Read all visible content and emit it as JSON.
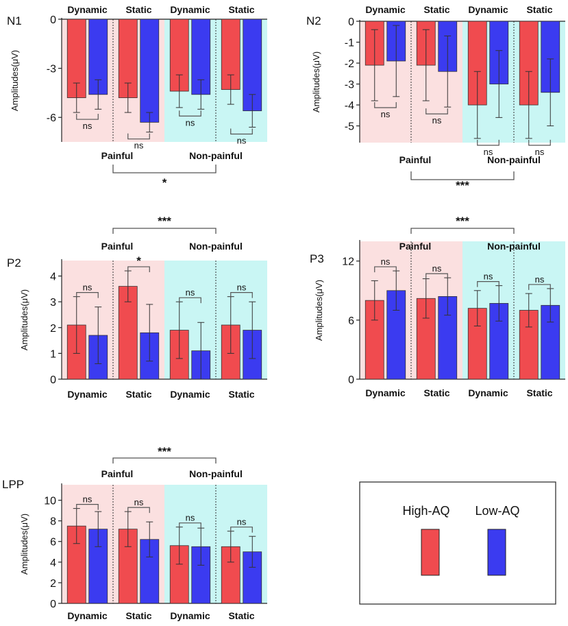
{
  "colors": {
    "high": "#f04b4f",
    "low": "#3b3bf0",
    "painful_bg": "#fbe0e0",
    "nonpainful_bg": "#c9f6f4"
  },
  "legend": {
    "high_label": "High-AQ",
    "low_label": "Low-AQ"
  },
  "chart_data": [
    {
      "panel": "N1",
      "type": "bar",
      "ylabel": "Amplitudes(μV)",
      "ylim": [
        -7.5,
        0
      ],
      "yticks": [
        "0",
        "-3",
        "-6"
      ],
      "groups": [
        "Painful",
        "Non-painful"
      ],
      "conditions": [
        "Dynamic",
        "Static",
        "Dynamic",
        "Static"
      ],
      "series": [
        {
          "name": "High-AQ",
          "values": [
            -4.8,
            -4.8,
            -4.4,
            -4.3
          ],
          "err": [
            0.9,
            0.9,
            1.0,
            0.9
          ]
        },
        {
          "name": "Low-AQ",
          "values": [
            -4.6,
            -6.3,
            -4.6,
            -5.6
          ],
          "err": [
            0.9,
            0.6,
            0.9,
            1.0
          ]
        }
      ],
      "pair_sig": [
        "ns",
        "ns",
        "ns",
        "ns"
      ],
      "group_sig": "*"
    },
    {
      "panel": "N2",
      "type": "bar",
      "ylabel": "Amplitudes(μV)",
      "ylim": [
        -5.8,
        0
      ],
      "yticks": [
        "0",
        "-1",
        "-2",
        "-3",
        "-4",
        "-5"
      ],
      "groups": [
        "Painful",
        "Non-painful"
      ],
      "conditions": [
        "Dynamic",
        "Static",
        "Dynamic",
        "Static"
      ],
      "series": [
        {
          "name": "High-AQ",
          "values": [
            -2.1,
            -2.1,
            -4.0,
            -4.0
          ],
          "err": [
            1.7,
            1.7,
            1.6,
            1.6
          ]
        },
        {
          "name": "Low-AQ",
          "values": [
            -1.9,
            -2.4,
            -3.0,
            -3.4
          ],
          "err": [
            1.7,
            1.7,
            1.6,
            1.6
          ]
        }
      ],
      "pair_sig": [
        "ns",
        "ns",
        "ns",
        "ns"
      ],
      "group_sig": "***"
    },
    {
      "panel": "P2",
      "type": "bar",
      "ylabel": "Amplitudes(μV)",
      "ylim": [
        0,
        4.6
      ],
      "yticks": [
        "0",
        "1",
        "2",
        "3",
        "4"
      ],
      "groups": [
        "Painful",
        "Non-painful"
      ],
      "conditions": [
        "Dynamic",
        "Static",
        "Dynamic",
        "Static"
      ],
      "series": [
        {
          "name": "High-AQ",
          "values": [
            2.1,
            3.6,
            1.9,
            2.1
          ],
          "err": [
            1.1,
            0.6,
            1.1,
            1.1
          ]
        },
        {
          "name": "Low-AQ",
          "values": [
            1.7,
            1.8,
            1.1,
            1.9
          ],
          "err": [
            1.1,
            1.1,
            1.1,
            1.1
          ]
        }
      ],
      "pair_sig": [
        "ns",
        "*",
        "ns",
        "ns"
      ],
      "group_sig": "***"
    },
    {
      "panel": "P3",
      "type": "bar",
      "ylabel": "Amplitudes(μV)",
      "ylim": [
        0,
        14
      ],
      "yticks": [
        "0",
        "6",
        "12"
      ],
      "groups": [
        "Painful",
        "Non-painful"
      ],
      "conditions": [
        "Dynamic",
        "Static",
        "Dynamic",
        "Static"
      ],
      "series": [
        {
          "name": "High-AQ",
          "values": [
            8.0,
            8.2,
            7.2,
            7.0
          ],
          "err": [
            2.0,
            2.0,
            1.8,
            1.7
          ]
        },
        {
          "name": "Low-AQ",
          "values": [
            9.0,
            8.4,
            7.7,
            7.5
          ],
          "err": [
            2.0,
            1.9,
            1.8,
            1.7
          ]
        }
      ],
      "pair_sig": [
        "ns",
        "ns",
        "ns",
        "ns"
      ],
      "group_sig": "***"
    },
    {
      "panel": "LPP",
      "type": "bar",
      "ylabel": "Amplitudes(μV)",
      "ylim": [
        0,
        11.5
      ],
      "yticks": [
        "0",
        "2",
        "4",
        "6",
        "8",
        "10"
      ],
      "groups": [
        "Painful",
        "Non-painful"
      ],
      "conditions": [
        "Dynamic",
        "Static",
        "Dynamic",
        "Static"
      ],
      "series": [
        {
          "name": "High-AQ",
          "values": [
            7.5,
            7.2,
            5.6,
            5.5
          ],
          "err": [
            1.7,
            1.7,
            1.8,
            1.5
          ]
        },
        {
          "name": "Low-AQ",
          "values": [
            7.2,
            6.2,
            5.5,
            5.0
          ],
          "err": [
            1.7,
            1.7,
            1.8,
            1.5
          ]
        }
      ],
      "pair_sig": [
        "ns",
        "ns",
        "ns",
        "ns"
      ],
      "group_sig": "***"
    }
  ]
}
